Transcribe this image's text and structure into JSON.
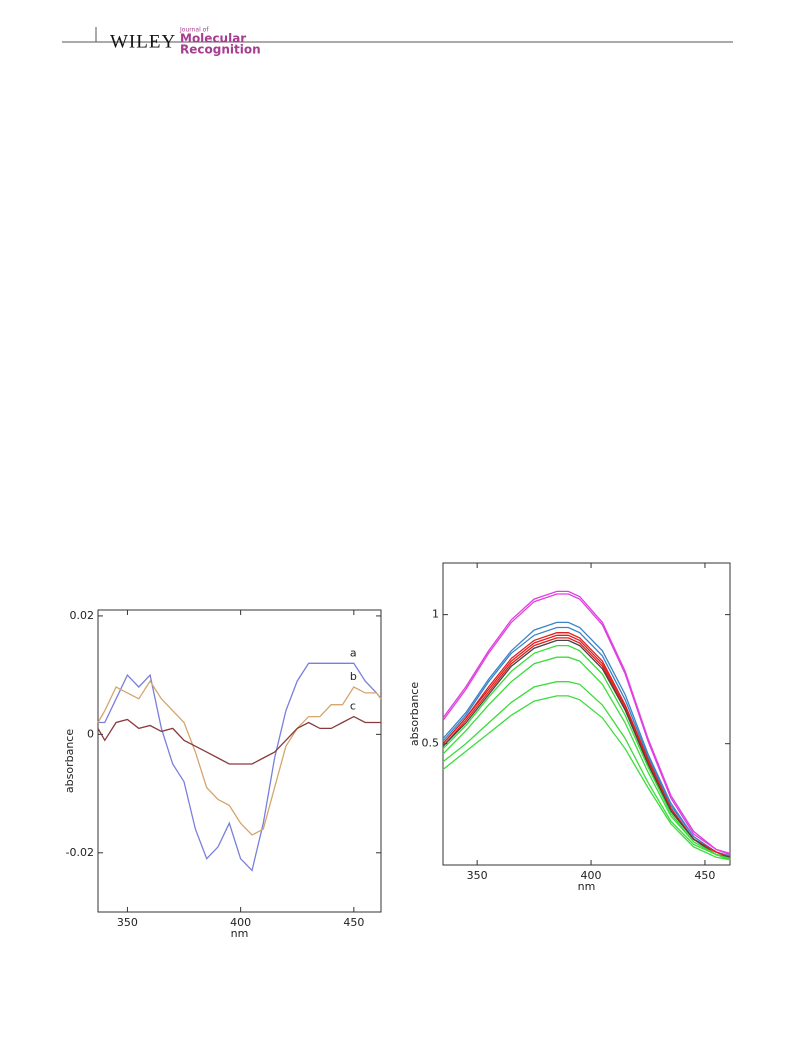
{
  "header": {
    "publisher": "WILEY",
    "journal_prefix": "Journal of",
    "journal_line1": "Molecular",
    "journal_line2": "Recognition"
  },
  "chart_data": [
    {
      "type": "line",
      "x_label": "nm",
      "y_label": "absorbance",
      "x": [
        337,
        340,
        345,
        350,
        355,
        360,
        365,
        370,
        375,
        380,
        385,
        390,
        395,
        400,
        405,
        410,
        415,
        420,
        425,
        430,
        435,
        440,
        445,
        450,
        455,
        460,
        462
      ],
      "xlim": [
        337,
        462
      ],
      "xticks": [
        350,
        400,
        450
      ],
      "ylim": [
        -0.03,
        0.021
      ],
      "yticks": [
        -0.02,
        0,
        0.02
      ],
      "series": [
        {
          "name": "a",
          "color": "#7a7fdc",
          "values": [
            0.002,
            0.002,
            0.006,
            0.01,
            0.008,
            0.01,
            0.001,
            -0.005,
            -0.008,
            -0.016,
            -0.021,
            -0.019,
            -0.015,
            -0.021,
            -0.023,
            -0.015,
            -0.004,
            0.004,
            0.009,
            0.012,
            0.012,
            0.012,
            0.012,
            0.012,
            0.009,
            0.007,
            0.006
          ]
        },
        {
          "name": "b",
          "color": "#d4a66e",
          "values": [
            0.002,
            0.004,
            0.008,
            0.007,
            0.006,
            0.009,
            0.006,
            0.004,
            0.002,
            -0.003,
            -0.009,
            -0.011,
            -0.012,
            -0.015,
            -0.017,
            -0.016,
            -0.009,
            -0.002,
            0.001,
            0.003,
            0.003,
            0.005,
            0.005,
            0.008,
            0.007,
            0.007,
            0.006
          ]
        },
        {
          "name": "c",
          "color": "#8b3a3a",
          "values": [
            0.001,
            -0.001,
            0.002,
            0.0025,
            0.001,
            0.0015,
            0.0005,
            0.001,
            -0.001,
            -0.002,
            -0.003,
            -0.004,
            -0.005,
            -0.005,
            -0.005,
            -0.004,
            -0.003,
            -0.001,
            0.001,
            0.002,
            0.001,
            0.001,
            0.002,
            0.003,
            0.002,
            0.002,
            0.002
          ]
        }
      ]
    },
    {
      "type": "line",
      "x_label": "nm",
      "y_label": "absorbance",
      "x": [
        335,
        345,
        355,
        365,
        375,
        385,
        390,
        395,
        405,
        415,
        425,
        435,
        445,
        455,
        461
      ],
      "xlim": [
        335,
        461
      ],
      "xticks": [
        350,
        400,
        450
      ],
      "ylim": [
        0.03,
        1.2
      ],
      "yticks": [
        0.5,
        1
      ],
      "series": [
        {
          "color": "#e040e0",
          "values": [
            0.6,
            0.72,
            0.86,
            0.98,
            1.06,
            1.09,
            1.09,
            1.07,
            0.97,
            0.78,
            0.52,
            0.3,
            0.16,
            0.09,
            0.075
          ]
        },
        {
          "color": "#e040e0",
          "values": [
            0.59,
            0.71,
            0.85,
            0.97,
            1.05,
            1.08,
            1.08,
            1.06,
            0.96,
            0.77,
            0.51,
            0.29,
            0.15,
            0.09,
            0.07
          ]
        },
        {
          "color": "#3c84c8",
          "values": [
            0.52,
            0.62,
            0.75,
            0.86,
            0.94,
            0.97,
            0.97,
            0.95,
            0.86,
            0.69,
            0.46,
            0.27,
            0.14,
            0.08,
            0.065
          ]
        },
        {
          "color": "#3c84c8",
          "values": [
            0.51,
            0.61,
            0.74,
            0.85,
            0.92,
            0.95,
            0.95,
            0.93,
            0.84,
            0.67,
            0.45,
            0.26,
            0.14,
            0.08,
            0.065
          ]
        },
        {
          "color": "#e02020",
          "values": [
            0.5,
            0.6,
            0.72,
            0.83,
            0.9,
            0.93,
            0.93,
            0.91,
            0.82,
            0.65,
            0.44,
            0.25,
            0.13,
            0.08,
            0.06
          ]
        },
        {
          "color": "#e02020",
          "values": [
            0.5,
            0.6,
            0.71,
            0.82,
            0.89,
            0.92,
            0.92,
            0.9,
            0.81,
            0.64,
            0.43,
            0.25,
            0.13,
            0.08,
            0.06
          ]
        },
        {
          "color": "#e02020",
          "values": [
            0.49,
            0.59,
            0.7,
            0.81,
            0.88,
            0.91,
            0.91,
            0.89,
            0.8,
            0.63,
            0.43,
            0.24,
            0.13,
            0.08,
            0.06
          ]
        },
        {
          "color": "#444444",
          "values": [
            0.49,
            0.58,
            0.69,
            0.8,
            0.87,
            0.9,
            0.9,
            0.88,
            0.79,
            0.63,
            0.42,
            0.24,
            0.13,
            0.07,
            0.06
          ]
        },
        {
          "color": "#3cdc3c",
          "values": [
            0.48,
            0.57,
            0.68,
            0.78,
            0.85,
            0.88,
            0.88,
            0.86,
            0.77,
            0.61,
            0.41,
            0.23,
            0.12,
            0.07,
            0.055
          ]
        },
        {
          "color": "#3cdc3c",
          "values": [
            0.46,
            0.55,
            0.65,
            0.74,
            0.81,
            0.835,
            0.835,
            0.82,
            0.73,
            0.58,
            0.39,
            0.22,
            0.12,
            0.07,
            0.055
          ]
        },
        {
          "color": "#3cdc3c",
          "values": [
            0.43,
            0.5,
            0.58,
            0.66,
            0.72,
            0.74,
            0.74,
            0.73,
            0.65,
            0.52,
            0.35,
            0.2,
            0.11,
            0.07,
            0.05
          ]
        },
        {
          "color": "#3cdc3c",
          "values": [
            0.4,
            0.47,
            0.54,
            0.61,
            0.665,
            0.685,
            0.685,
            0.67,
            0.6,
            0.48,
            0.33,
            0.19,
            0.1,
            0.06,
            0.05
          ]
        }
      ]
    }
  ]
}
